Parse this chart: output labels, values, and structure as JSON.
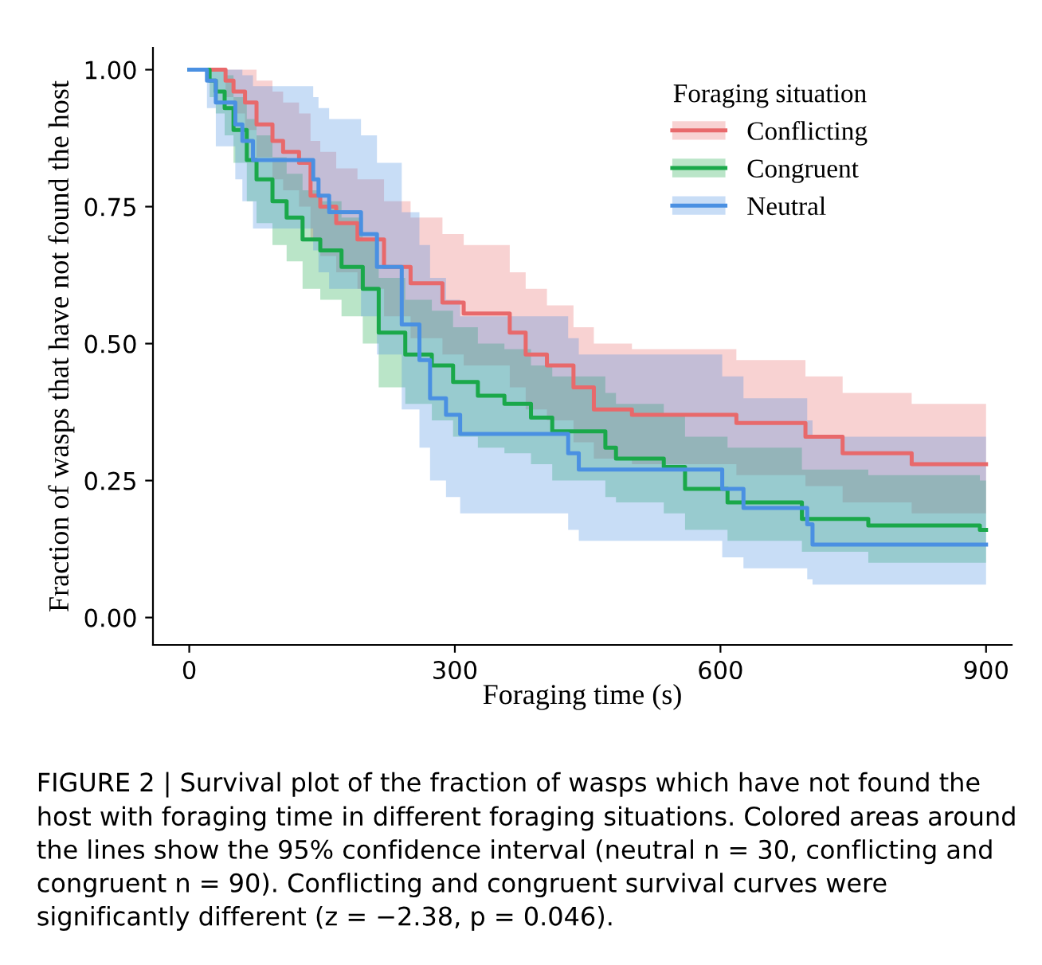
{
  "chart_data": {
    "type": "step",
    "xlabel": "Foraging time (s)",
    "ylabel": "Fraction of wasps that have not found the host",
    "legend_title": "Foraging situation",
    "legend": "top right",
    "grid": false,
    "line_style": "solid",
    "xlim": [
      -41,
      929
    ],
    "xticks": [
      0,
      300,
      600,
      900
    ],
    "ylim": [
      -0.05,
      1.04
    ],
    "yticks": [
      {
        "value": 0,
        "label": "0.00"
      },
      {
        "value": 0.25,
        "label": "0.25"
      },
      {
        "value": 0.5,
        "label": "0.50"
      },
      {
        "value": 0.75,
        "label": "0.75"
      },
      {
        "value": 1,
        "label": "1.00"
      }
    ],
    "series": [
      {
        "name": "Conflicting",
        "color": "#e8696b",
        "x": [
          0,
          41,
          50,
          63,
          76,
          94,
          106,
          124,
          137,
          148,
          166,
          190,
          220,
          250,
          286,
          310,
          362,
          380,
          404,
          434,
          457,
          500,
          618,
          696,
          738,
          816,
          900
        ],
        "values": [
          1,
          0.98,
          0.96,
          0.94,
          0.9,
          0.87,
          0.85,
          0.83,
          0.77,
          0.75,
          0.72,
          0.69,
          0.64,
          0.61,
          0.575,
          0.555,
          0.52,
          0.48,
          0.46,
          0.42,
          0.38,
          0.37,
          0.355,
          0.33,
          0.3,
          0.28,
          0.28
        ],
        "upper": [
          1,
          1,
          1,
          1,
          0.98,
          0.96,
          0.94,
          0.92,
          0.87,
          0.85,
          0.82,
          0.8,
          0.76,
          0.73,
          0.7,
          0.68,
          0.63,
          0.6,
          0.57,
          0.53,
          0.5,
          0.49,
          0.47,
          0.44,
          0.41,
          0.39,
          0.39
        ],
        "lower": [
          1,
          0.95,
          0.92,
          0.89,
          0.84,
          0.8,
          0.78,
          0.75,
          0.69,
          0.66,
          0.63,
          0.6,
          0.55,
          0.51,
          0.48,
          0.46,
          0.42,
          0.38,
          0.36,
          0.32,
          0.29,
          0.28,
          0.26,
          0.24,
          0.21,
          0.19,
          0.19
        ]
      },
      {
        "name": "Congruent",
        "color": "#1aa84a",
        "x": [
          0,
          23,
          30,
          40,
          50,
          65,
          76,
          94,
          110,
          128,
          148,
          172,
          196,
          214,
          244,
          274,
          298,
          326,
          356,
          386,
          410,
          470,
          482,
          536,
          560,
          608,
          692,
          767,
          893,
          900
        ],
        "values": [
          1,
          0.98,
          0.96,
          0.93,
          0.89,
          0.835,
          0.8,
          0.76,
          0.73,
          0.69,
          0.67,
          0.64,
          0.6,
          0.52,
          0.48,
          0.46,
          0.43,
          0.405,
          0.39,
          0.365,
          0.34,
          0.31,
          0.29,
          0.275,
          0.235,
          0.21,
          0.18,
          0.168,
          0.16,
          0.16
        ],
        "upper": [
          1,
          1,
          1,
          0.99,
          0.95,
          0.91,
          0.88,
          0.84,
          0.81,
          0.78,
          0.76,
          0.73,
          0.69,
          0.62,
          0.58,
          0.56,
          0.53,
          0.5,
          0.49,
          0.46,
          0.44,
          0.41,
          0.39,
          0.37,
          0.33,
          0.31,
          0.27,
          0.26,
          0.25,
          0.25
        ],
        "lower": [
          1,
          0.95,
          0.92,
          0.88,
          0.83,
          0.76,
          0.72,
          0.68,
          0.65,
          0.6,
          0.58,
          0.55,
          0.5,
          0.42,
          0.39,
          0.36,
          0.33,
          0.31,
          0.3,
          0.28,
          0.25,
          0.22,
          0.21,
          0.19,
          0.16,
          0.14,
          0.12,
          0.1,
          0.1,
          0.1
        ]
      },
      {
        "name": "Neutral",
        "color": "#4a90e2",
        "x": [
          0,
          20,
          30,
          52,
          60,
          72,
          140,
          146,
          158,
          194,
          212,
          240,
          260,
          272,
          290,
          306,
          428,
          440,
          602,
          626,
          698,
          704,
          900
        ],
        "values": [
          1,
          0.98,
          0.94,
          0.9,
          0.87,
          0.835,
          0.8,
          0.77,
          0.74,
          0.7,
          0.64,
          0.535,
          0.47,
          0.4,
          0.37,
          0.335,
          0.3,
          0.27,
          0.235,
          0.2,
          0.17,
          0.133,
          0.133
        ],
        "upper": [
          1,
          1,
          1,
          1,
          0.99,
          0.97,
          0.95,
          0.93,
          0.91,
          0.88,
          0.83,
          0.74,
          0.68,
          0.62,
          0.58,
          0.55,
          0.51,
          0.48,
          0.44,
          0.4,
          0.36,
          0.33,
          0.33
        ],
        "lower": [
          1,
          0.93,
          0.86,
          0.8,
          0.76,
          0.71,
          0.67,
          0.63,
          0.6,
          0.55,
          0.48,
          0.38,
          0.31,
          0.25,
          0.22,
          0.19,
          0.16,
          0.14,
          0.11,
          0.09,
          0.07,
          0.06,
          0.06
        ]
      }
    ],
    "annotations": [
      "FIGURE 2 | Survival plot of the fraction of wasps which have not found the host with foraging time in different foraging situations. Colored areas around the lines show the 95% confidence interval (neutral n = 30, conflicting and congruent n = 90). Conflicting and congruent survival curves were significantly different (z = −2.38, p = 0.046)."
    ]
  }
}
